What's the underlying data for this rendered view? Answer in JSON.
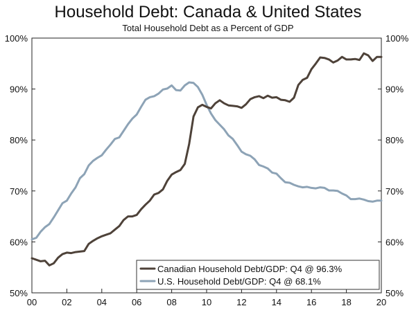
{
  "chart_data": {
    "type": "line",
    "title": "Household Debt: Canada & United States",
    "subtitle": "Total Household Debt as a Percent of GDP",
    "xlabel": "",
    "ylabel": "",
    "xlim": [
      2000,
      2020
    ],
    "ylim": [
      50,
      100
    ],
    "x_ticks": [
      2000,
      2002,
      2004,
      2006,
      2008,
      2010,
      2012,
      2014,
      2016,
      2018,
      2020
    ],
    "x_tick_labels": [
      "00",
      "02",
      "04",
      "06",
      "08",
      "10",
      "12",
      "14",
      "16",
      "18",
      "20"
    ],
    "y_ticks": [
      50,
      60,
      70,
      80,
      90,
      100
    ],
    "y_tick_labels": [
      "50%",
      "60%",
      "70%",
      "80%",
      "90%",
      "100%"
    ],
    "legend_position": "bottom-right",
    "series": [
      {
        "name": "Canadian Household Debt/GDP: Q4 @ 96.3%",
        "color": "#4e4239",
        "points": [
          [
            2000.0,
            56.8
          ],
          [
            2000.25,
            56.5
          ],
          [
            2000.5,
            56.2
          ],
          [
            2000.75,
            56.3
          ],
          [
            2001.0,
            55.4
          ],
          [
            2001.25,
            55.8
          ],
          [
            2001.5,
            56.9
          ],
          [
            2001.75,
            57.6
          ],
          [
            2002.0,
            57.9
          ],
          [
            2002.25,
            57.8
          ],
          [
            2002.5,
            58.0
          ],
          [
            2002.75,
            58.1
          ],
          [
            2003.0,
            58.2
          ],
          [
            2003.25,
            59.6
          ],
          [
            2003.5,
            60.2
          ],
          [
            2003.75,
            60.7
          ],
          [
            2004.0,
            61.1
          ],
          [
            2004.25,
            61.4
          ],
          [
            2004.5,
            61.7
          ],
          [
            2004.75,
            62.4
          ],
          [
            2005.0,
            63.1
          ],
          [
            2005.25,
            64.3
          ],
          [
            2005.5,
            65.0
          ],
          [
            2005.75,
            65.0
          ],
          [
            2006.0,
            65.3
          ],
          [
            2006.25,
            66.4
          ],
          [
            2006.5,
            67.3
          ],
          [
            2006.75,
            68.1
          ],
          [
            2007.0,
            69.3
          ],
          [
            2007.25,
            69.6
          ],
          [
            2007.5,
            70.3
          ],
          [
            2007.75,
            72.0
          ],
          [
            2008.0,
            73.2
          ],
          [
            2008.25,
            73.7
          ],
          [
            2008.5,
            74.1
          ],
          [
            2008.75,
            75.3
          ],
          [
            2009.0,
            79.2
          ],
          [
            2009.25,
            84.6
          ],
          [
            2009.5,
            86.4
          ],
          [
            2009.75,
            86.9
          ],
          [
            2010.0,
            86.5
          ],
          [
            2010.25,
            86.2
          ],
          [
            2010.5,
            87.2
          ],
          [
            2010.75,
            87.8
          ],
          [
            2011.0,
            87.2
          ],
          [
            2011.25,
            86.8
          ],
          [
            2011.5,
            86.7
          ],
          [
            2011.75,
            86.6
          ],
          [
            2012.0,
            86.3
          ],
          [
            2012.25,
            87.0
          ],
          [
            2012.5,
            88.0
          ],
          [
            2012.75,
            88.4
          ],
          [
            2013.0,
            88.6
          ],
          [
            2013.25,
            88.2
          ],
          [
            2013.5,
            88.7
          ],
          [
            2013.75,
            88.3
          ],
          [
            2014.0,
            88.4
          ],
          [
            2014.25,
            87.9
          ],
          [
            2014.5,
            87.8
          ],
          [
            2014.75,
            87.5
          ],
          [
            2015.0,
            88.3
          ],
          [
            2015.25,
            90.8
          ],
          [
            2015.5,
            91.8
          ],
          [
            2015.75,
            92.2
          ],
          [
            2016.0,
            93.9
          ],
          [
            2016.25,
            95.0
          ],
          [
            2016.5,
            96.2
          ],
          [
            2016.75,
            96.1
          ],
          [
            2017.0,
            95.8
          ],
          [
            2017.25,
            95.2
          ],
          [
            2017.5,
            95.6
          ],
          [
            2017.75,
            96.3
          ],
          [
            2018.0,
            95.8
          ],
          [
            2018.25,
            95.8
          ],
          [
            2018.5,
            95.9
          ],
          [
            2018.75,
            95.7
          ],
          [
            2019.0,
            97.0
          ],
          [
            2019.25,
            96.6
          ],
          [
            2019.5,
            95.5
          ],
          [
            2019.75,
            96.3
          ],
          [
            2020.0,
            96.3
          ]
        ]
      },
      {
        "name": "U.S. Household Debt/GDP: Q4 @ 68.1%",
        "color": "#8da3b6",
        "points": [
          [
            2000.0,
            60.5
          ],
          [
            2000.25,
            60.8
          ],
          [
            2000.5,
            62.0
          ],
          [
            2000.75,
            62.9
          ],
          [
            2001.0,
            63.5
          ],
          [
            2001.25,
            64.8
          ],
          [
            2001.5,
            66.2
          ],
          [
            2001.75,
            67.6
          ],
          [
            2002.0,
            68.1
          ],
          [
            2002.25,
            69.5
          ],
          [
            2002.5,
            70.7
          ],
          [
            2002.75,
            72.5
          ],
          [
            2003.0,
            73.3
          ],
          [
            2003.25,
            75.0
          ],
          [
            2003.5,
            75.9
          ],
          [
            2003.75,
            76.5
          ],
          [
            2004.0,
            77.0
          ],
          [
            2004.25,
            78.1
          ],
          [
            2004.5,
            79.1
          ],
          [
            2004.75,
            80.2
          ],
          [
            2005.0,
            80.5
          ],
          [
            2005.25,
            81.8
          ],
          [
            2005.5,
            83.1
          ],
          [
            2005.75,
            84.2
          ],
          [
            2006.0,
            85.0
          ],
          [
            2006.25,
            86.5
          ],
          [
            2006.5,
            87.9
          ],
          [
            2006.75,
            88.4
          ],
          [
            2007.0,
            88.6
          ],
          [
            2007.25,
            89.1
          ],
          [
            2007.5,
            89.9
          ],
          [
            2007.75,
            90.1
          ],
          [
            2008.0,
            90.7
          ],
          [
            2008.25,
            89.8
          ],
          [
            2008.5,
            89.7
          ],
          [
            2008.75,
            90.7
          ],
          [
            2009.0,
            91.3
          ],
          [
            2009.25,
            91.2
          ],
          [
            2009.5,
            90.4
          ],
          [
            2009.75,
            88.9
          ],
          [
            2010.0,
            86.9
          ],
          [
            2010.25,
            85.2
          ],
          [
            2010.5,
            83.9
          ],
          [
            2010.75,
            83.0
          ],
          [
            2011.0,
            82.1
          ],
          [
            2011.25,
            80.9
          ],
          [
            2011.5,
            80.2
          ],
          [
            2011.75,
            79.0
          ],
          [
            2012.0,
            77.7
          ],
          [
            2012.25,
            77.2
          ],
          [
            2012.5,
            76.9
          ],
          [
            2012.75,
            76.2
          ],
          [
            2013.0,
            75.1
          ],
          [
            2013.25,
            74.8
          ],
          [
            2013.5,
            74.4
          ],
          [
            2013.75,
            73.6
          ],
          [
            2014.0,
            73.4
          ],
          [
            2014.25,
            72.5
          ],
          [
            2014.5,
            71.7
          ],
          [
            2014.75,
            71.6
          ],
          [
            2015.0,
            71.2
          ],
          [
            2015.25,
            70.9
          ],
          [
            2015.5,
            70.7
          ],
          [
            2015.75,
            70.8
          ],
          [
            2016.0,
            70.6
          ],
          [
            2016.25,
            70.5
          ],
          [
            2016.5,
            70.7
          ],
          [
            2016.75,
            70.6
          ],
          [
            2017.0,
            70.1
          ],
          [
            2017.25,
            70.1
          ],
          [
            2017.5,
            70.0
          ],
          [
            2017.75,
            69.5
          ],
          [
            2018.0,
            69.1
          ],
          [
            2018.25,
            68.4
          ],
          [
            2018.5,
            68.4
          ],
          [
            2018.75,
            68.5
          ],
          [
            2019.0,
            68.3
          ],
          [
            2019.25,
            68.0
          ],
          [
            2019.5,
            67.9
          ],
          [
            2019.75,
            68.1
          ],
          [
            2020.0,
            68.1
          ]
        ]
      }
    ]
  }
}
